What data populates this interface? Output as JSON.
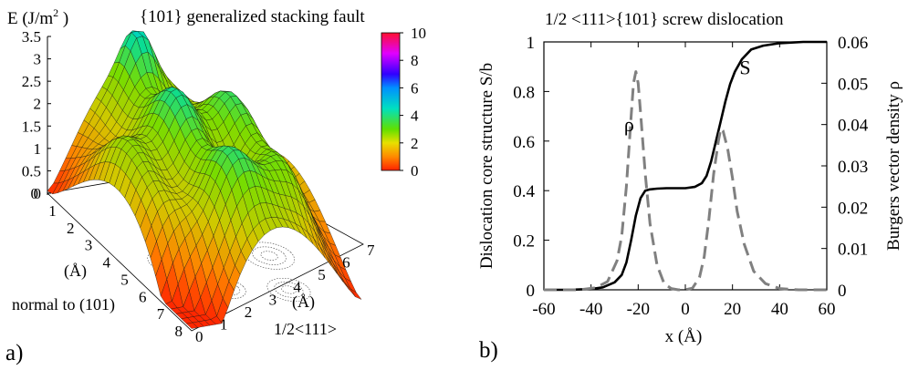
{
  "chart_data": [
    {
      "type": "surface",
      "panel_label": "a)",
      "title": "{101} generalized stacking fault",
      "zlabel": "E (J/m",
      "zlabel_sup": "2",
      "zlabel_end": " )",
      "z_ticks": [
        "0",
        "0.5",
        "1",
        "1.5",
        "2",
        "2.5",
        "3",
        "3.5"
      ],
      "zlim": [
        0,
        3.5
      ],
      "y_axis_label_unit": "(Å)",
      "y_axis_label": "normal to (101)",
      "y_ticks": [
        "0",
        "1",
        "2",
        "3",
        "4",
        "5",
        "6",
        "7",
        "8"
      ],
      "x_axis_label_unit": "(Å)",
      "x_axis_label": "1/2<111>",
      "x_ticks": [
        "0",
        "1",
        "2",
        "3",
        "4",
        "5",
        "6",
        "7"
      ],
      "colorbar": {
        "ticks": [
          "0",
          "2",
          "4",
          "6",
          "8",
          "10"
        ],
        "range": [
          0,
          10
        ]
      },
      "base_plane": "contour lines",
      "colors": {
        "low": "#ff2a00",
        "mid": "#e8d800",
        "high": "#00e8c8",
        "top": "#ff2040"
      }
    },
    {
      "type": "line",
      "panel_label": "b)",
      "title": "1/2 <111>{101} screw dislocation",
      "xlabel": "x (Å)",
      "ylabel_left": "Dislocation core structure S/b",
      "ylabel_right": "Burgers vector density ρ",
      "xlim": [
        -60,
        60
      ],
      "ylim_left": [
        0,
        1
      ],
      "ylim_right": [
        0,
        0.06
      ],
      "x_ticks": [
        "-60",
        "-40",
        "-20",
        "0",
        "20",
        "40",
        "60"
      ],
      "y_ticks_left": [
        "0",
        "0.2",
        "0.4",
        "0.6",
        "0.8",
        "1"
      ],
      "y_ticks_right": [
        "0",
        "0.01",
        "0.02",
        "0.03",
        "0.04",
        "0.05",
        "0.06"
      ],
      "series": [
        {
          "name": "S",
          "axis": "left",
          "style": "solid",
          "color": "#000000",
          "x": [
            -60,
            -50,
            -40,
            -35,
            -30,
            -27,
            -25,
            -23,
            -21,
            -19,
            -17,
            -15,
            -12,
            -8,
            -4,
            0,
            4,
            7,
            9,
            11,
            13,
            15,
            17,
            19,
            21,
            24,
            28,
            33,
            40,
            50,
            60
          ],
          "y": [
            0.0,
            0.0,
            0.003,
            0.01,
            0.03,
            0.06,
            0.11,
            0.2,
            0.3,
            0.37,
            0.4,
            0.405,
            0.408,
            0.41,
            0.41,
            0.41,
            0.415,
            0.43,
            0.46,
            0.52,
            0.6,
            0.68,
            0.76,
            0.83,
            0.88,
            0.93,
            0.97,
            0.985,
            0.995,
            1.0,
            1.0
          ]
        },
        {
          "name": "ρ",
          "axis": "right",
          "style": "dashed",
          "color": "#808080",
          "x": [
            -60,
            -45,
            -38,
            -33,
            -29,
            -27,
            -25,
            -23,
            -22,
            -21,
            -20,
            -19,
            -17,
            -15,
            -12,
            -9,
            -6,
            -3,
            0,
            3,
            6,
            8,
            10,
            12,
            14,
            15,
            16,
            18,
            20,
            22,
            25,
            29,
            34,
            40,
            48,
            60
          ],
          "y": [
            0.0,
            0.0,
            0.0005,
            0.002,
            0.007,
            0.013,
            0.025,
            0.042,
            0.05,
            0.0528,
            0.05,
            0.043,
            0.028,
            0.016,
            0.006,
            0.0015,
            0.0003,
            0.0,
            0.0,
            0.0004,
            0.003,
            0.008,
            0.017,
            0.028,
            0.036,
            0.039,
            0.0385,
            0.034,
            0.027,
            0.019,
            0.011,
            0.0045,
            0.0015,
            0.0003,
            0.0,
            0.0
          ]
        }
      ],
      "annotations": [
        {
          "text": "S",
          "at_x": 23,
          "at_y": 0.87
        },
        {
          "text": "ρ",
          "at_x": -26,
          "at_y": 0.64
        }
      ]
    }
  ]
}
